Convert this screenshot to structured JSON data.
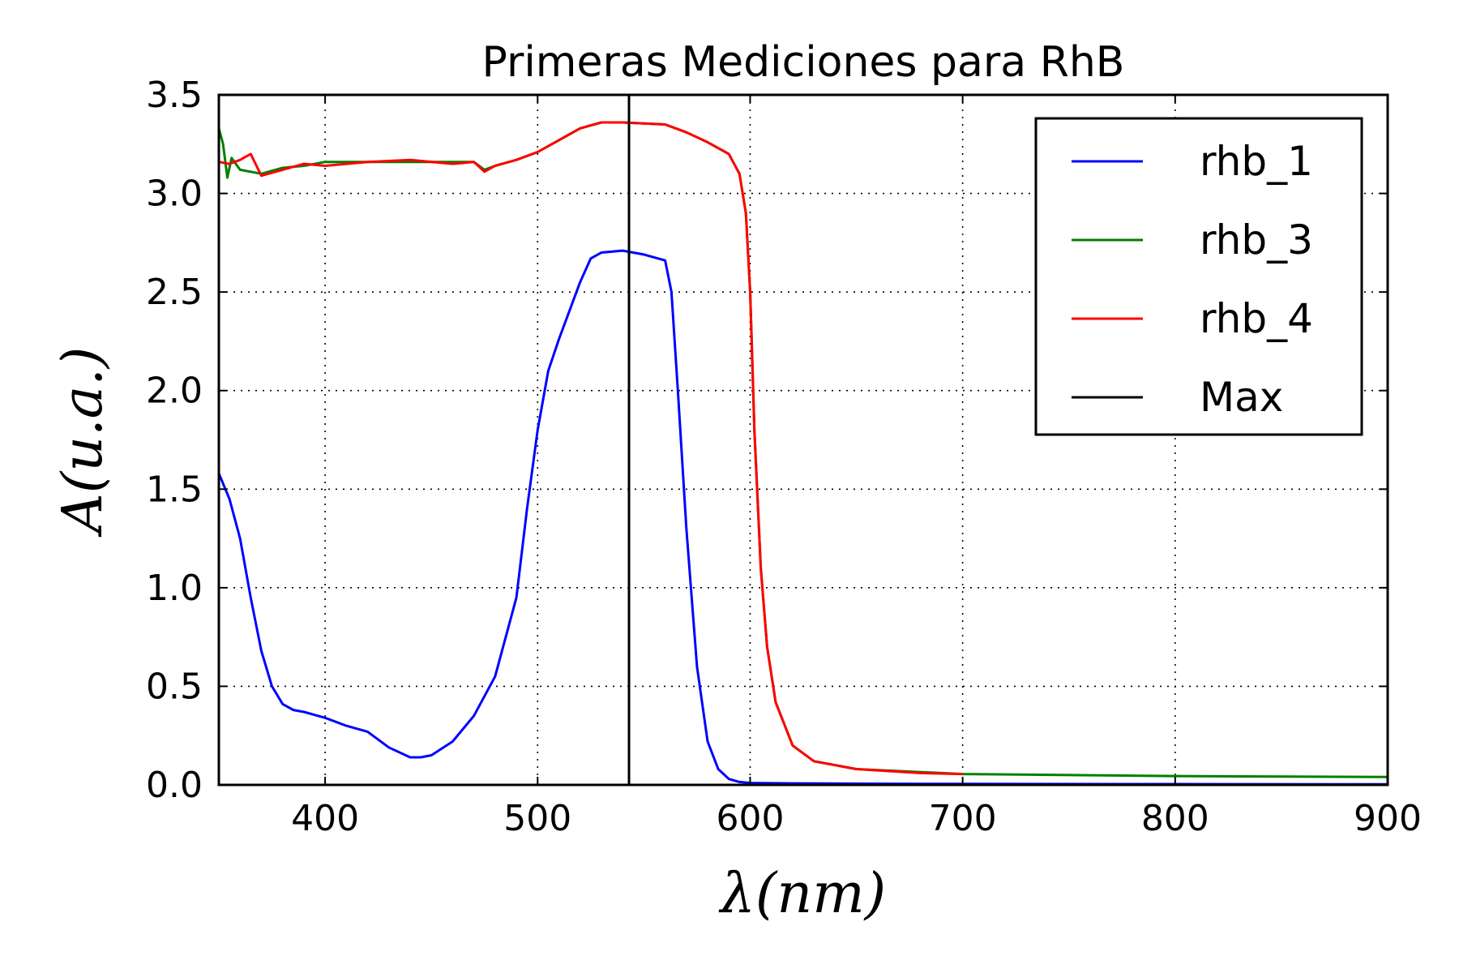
{
  "chart_data": {
    "type": "line",
    "title": "Primeras Mediciones para RhB",
    "xlabel": "λ(nm)",
    "ylabel": "A(u.a.)",
    "xlim": [
      350,
      900
    ],
    "ylim": [
      0.0,
      3.5
    ],
    "xticks": [
      400,
      500,
      600,
      700,
      800,
      900
    ],
    "xtick_labels": [
      "400",
      "500",
      "600",
      "700",
      "800",
      "900"
    ],
    "yticks": [
      0.0,
      0.5,
      1.0,
      1.5,
      2.0,
      2.5,
      3.0,
      3.5
    ],
    "ytick_labels": [
      "0.0",
      "0.5",
      "1.0",
      "1.5",
      "2.0",
      "2.5",
      "3.0",
      "3.5"
    ],
    "grid": true,
    "legend_position": "top-right",
    "series": [
      {
        "name": "rhb_1",
        "color": "#0000ff",
        "x": [
          350,
          355,
          360,
          365,
          370,
          375,
          380,
          385,
          390,
          400,
          410,
          420,
          430,
          440,
          445,
          450,
          460,
          470,
          480,
          490,
          495,
          500,
          505,
          510,
          520,
          525,
          530,
          540,
          550,
          560,
          563,
          566,
          570,
          575,
          580,
          585,
          590,
          595,
          600,
          620,
          650,
          700,
          800,
          900
        ],
        "y": [
          1.58,
          1.45,
          1.25,
          0.95,
          0.68,
          0.5,
          0.41,
          0.38,
          0.37,
          0.34,
          0.3,
          0.27,
          0.19,
          0.14,
          0.14,
          0.15,
          0.22,
          0.35,
          0.55,
          0.95,
          1.4,
          1.8,
          2.1,
          2.26,
          2.55,
          2.67,
          2.7,
          2.71,
          2.69,
          2.66,
          2.5,
          2.0,
          1.3,
          0.6,
          0.22,
          0.08,
          0.03,
          0.015,
          0.01,
          0.008,
          0.006,
          0.005,
          0.004,
          0.003
        ]
      },
      {
        "name": "rhb_3",
        "color": "#008000",
        "x": [
          350,
          352,
          354,
          356,
          360,
          370,
          380,
          390,
          400,
          420,
          440,
          460,
          470,
          475,
          480,
          490,
          500,
          510,
          520,
          530,
          540,
          550,
          560,
          570,
          580,
          590,
          595,
          598,
          600,
          602,
          605,
          608,
          612,
          620,
          630,
          650,
          700,
          800,
          900
        ],
        "y": [
          3.33,
          3.25,
          3.08,
          3.18,
          3.12,
          3.1,
          3.13,
          3.14,
          3.16,
          3.16,
          3.16,
          3.16,
          3.16,
          3.12,
          3.14,
          3.17,
          3.21,
          3.27,
          3.33,
          3.36,
          3.36,
          3.355,
          3.35,
          3.31,
          3.26,
          3.2,
          3.1,
          2.9,
          2.5,
          1.8,
          1.1,
          0.7,
          0.42,
          0.2,
          0.12,
          0.08,
          0.055,
          0.045,
          0.04
        ]
      },
      {
        "name": "rhb_4",
        "color": "#ff0000",
        "x": [
          350,
          355,
          360,
          365,
          370,
          380,
          390,
          400,
          420,
          440,
          460,
          470,
          475,
          480,
          490,
          500,
          510,
          520,
          530,
          540,
          550,
          560,
          570,
          580,
          590,
          595,
          598,
          600,
          602,
          605,
          608,
          612,
          620,
          630,
          650,
          680,
          700
        ],
        "y": [
          3.16,
          3.15,
          3.17,
          3.2,
          3.09,
          3.12,
          3.15,
          3.14,
          3.16,
          3.17,
          3.15,
          3.16,
          3.11,
          3.14,
          3.17,
          3.21,
          3.27,
          3.33,
          3.36,
          3.36,
          3.355,
          3.35,
          3.31,
          3.26,
          3.2,
          3.1,
          2.9,
          2.5,
          1.8,
          1.1,
          0.7,
          0.42,
          0.2,
          0.12,
          0.08,
          0.06,
          0.055
        ]
      }
    ],
    "vlines": [
      {
        "name": "Max",
        "x": 543,
        "color": "#000000"
      }
    ]
  }
}
